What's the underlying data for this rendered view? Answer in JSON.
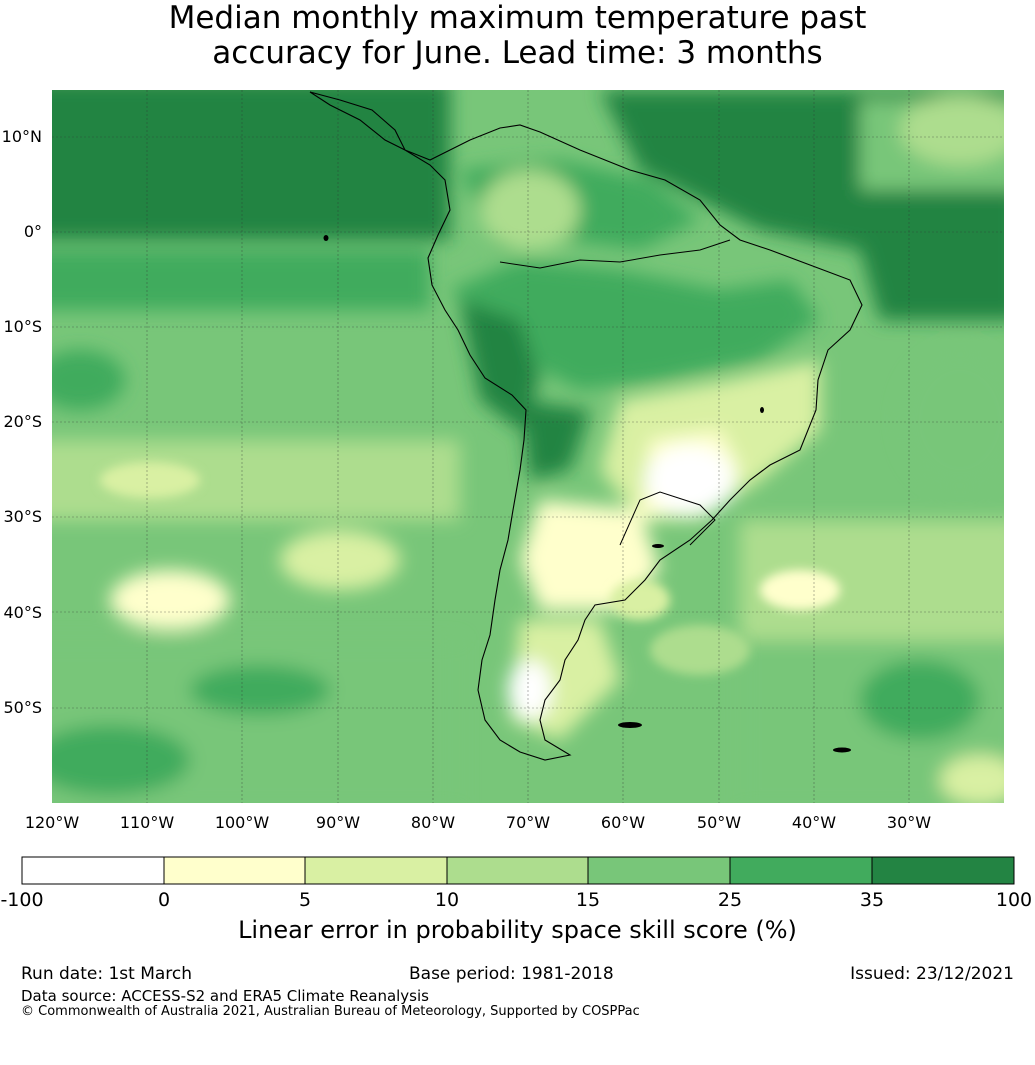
{
  "title_line1": "Median monthly maximum temperature past",
  "title_line2": "accuracy for June. Lead time: 3 months",
  "map": {
    "lon_labels": [
      "120°W",
      "110°W",
      "100°W",
      "90°W",
      "80°W",
      "70°W",
      "60°W",
      "50°W",
      "40°W",
      "30°W"
    ],
    "lat_labels": [
      "10°N",
      "0°",
      "10°S",
      "20°S",
      "30°S",
      "40°S",
      "50°S"
    ],
    "extent": {
      "lon_min": -120,
      "lon_max": -20,
      "lat_min": -60,
      "lat_max": 15
    }
  },
  "colorbar": {
    "title": "Linear error in probability space skill score (%)",
    "ticks": [
      "-100",
      "0",
      "5",
      "10",
      "15",
      "25",
      "35",
      "100"
    ],
    "colors": [
      "#ffffff",
      "#ffffcc",
      "#d9f0a3",
      "#addd8e",
      "#78c679",
      "#41ab5d",
      "#238443"
    ]
  },
  "footer": {
    "run_date": "Run date: 1st March",
    "base_period": "Base period: 1981-2018",
    "issued": "Issued: 23/12/2021",
    "data_source": "Data source: ACCESS-S2 and ERA5 Climate Reanalysis",
    "copyright": "© Commonwealth of Australia 2021, Australian Bureau of Meteorology, Supported by COSPPac"
  }
}
